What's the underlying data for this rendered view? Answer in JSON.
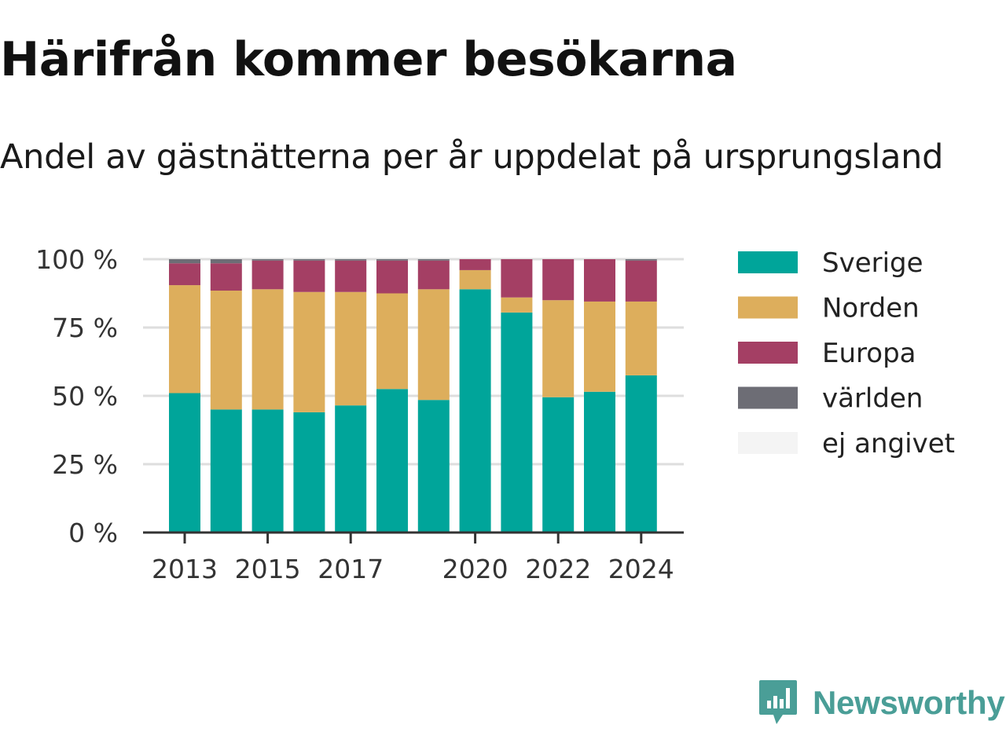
{
  "title": "Härifrån kommer besökarna",
  "subtitle": "Andel av gästnätterna per år uppdelat på ursprungsland",
  "brand": "Newsworthy",
  "colors": {
    "sverige": "#00a59a",
    "norden": "#ddae5c",
    "europa": "#a43f64",
    "varlden": "#6d6d75",
    "ej_angivet": "#f4f4f4",
    "grid": "#dedede",
    "axis": "#333333",
    "brand": "#4a9e97"
  },
  "chart_data": {
    "type": "bar",
    "stacked": true,
    "categories": [
      "2013",
      "2014",
      "2015",
      "2016",
      "2017",
      "2018",
      "2019",
      "2020",
      "2021",
      "2022",
      "2023",
      "2024"
    ],
    "x_tick_labels": [
      "2013",
      "2015",
      "2017",
      "2020",
      "2022",
      "2024"
    ],
    "y_tick_labels": [
      "0 %",
      "25 %",
      "50 %",
      "75 %",
      "100 %"
    ],
    "ylim": [
      0,
      100
    ],
    "y_ticks": [
      0,
      25,
      50,
      75,
      100
    ],
    "grid": true,
    "legend_position": "right",
    "series": [
      {
        "name": "Sverige",
        "color_key": "sverige",
        "values": [
          51,
          45,
          45,
          44,
          46.5,
          52.5,
          48.5,
          89,
          80.5,
          49.5,
          51.5,
          57.5
        ]
      },
      {
        "name": "Norden",
        "color_key": "norden",
        "values": [
          39.5,
          43.5,
          44,
          44,
          41.5,
          35,
          40.5,
          7,
          5.5,
          35.5,
          33,
          27
        ]
      },
      {
        "name": "Europa",
        "color_key": "europa",
        "values": [
          8,
          10,
          10.5,
          11.5,
          11.5,
          12,
          10.5,
          4,
          14,
          15,
          15.5,
          15
        ]
      },
      {
        "name": "världen",
        "color_key": "varlden",
        "values": [
          1.5,
          1.5,
          0.5,
          0.5,
          0.5,
          0.5,
          0.5,
          0,
          0,
          0,
          0,
          0.5
        ]
      },
      {
        "name": "ej angivet",
        "color_key": "ej_angivet",
        "values": [
          0,
          0,
          0,
          0,
          0,
          0,
          0,
          0,
          0,
          0,
          0,
          0
        ]
      }
    ]
  }
}
